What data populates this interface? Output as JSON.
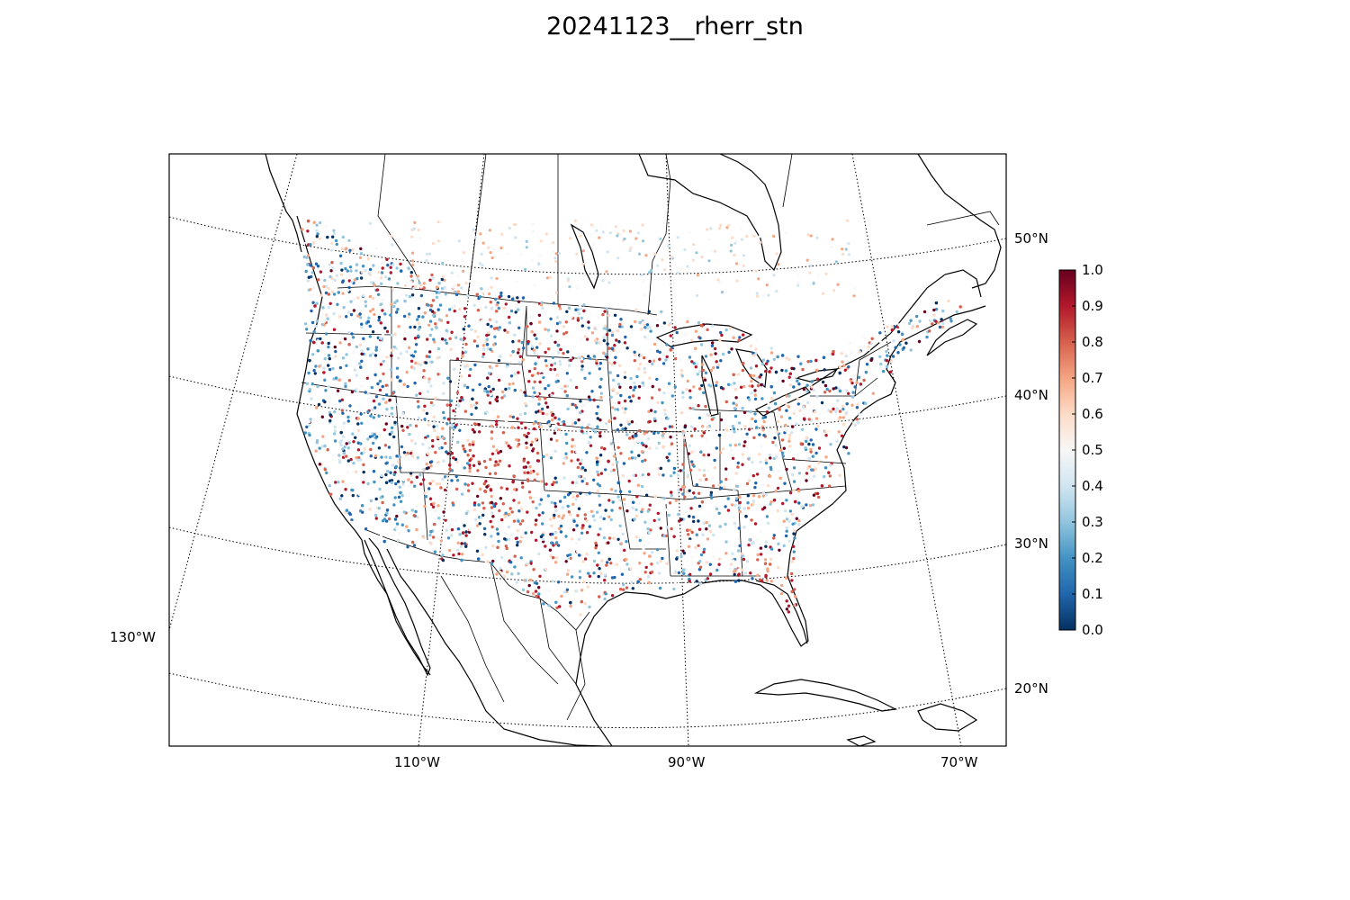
{
  "title": "20241123__rherr_stn",
  "map": {
    "projection": "lambert-conformal",
    "lat_labels": [
      "50°N",
      "40°N",
      "30°N",
      "20°N"
    ],
    "lon_labels": [
      "130°W",
      "110°W",
      "90°W",
      "70°W"
    ],
    "parallels": [
      20,
      30,
      40,
      50
    ],
    "meridians": [
      -130,
      -110,
      -90,
      -70
    ],
    "cmap": "RdBu_r",
    "point_count_shown": "dense station network over CONUS"
  },
  "colorbar": {
    "ticks": [
      "0.0",
      "0.1",
      "0.2",
      "0.3",
      "0.4",
      "0.5",
      "0.6",
      "0.7",
      "0.8",
      "0.9",
      "1.0"
    ],
    "min": 0.0,
    "max": 1.0,
    "colors": [
      "#053061",
      "#2166ac",
      "#4393c3",
      "#92c5de",
      "#d1e5f0",
      "#f7f7f7",
      "#fddbc7",
      "#f4a582",
      "#d6604d",
      "#b2182b",
      "#67001f"
    ]
  }
}
